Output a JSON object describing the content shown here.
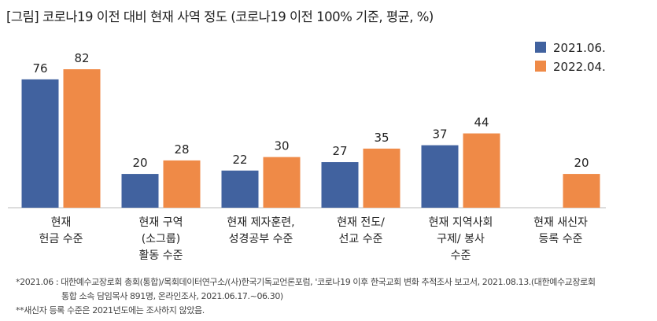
{
  "title": "[그림] 코로나19 이전 대비 현재 사역 정도 (코로나19 이전 100% 기준, 평균, %)",
  "chart_data": {
    "type": "bar",
    "categories": [
      [
        "현재",
        "헌금 수준"
      ],
      [
        "현재 구역",
        "(소그룹)",
        "활동 수준"
      ],
      [
        "현재 제자훈련,",
        "성경공부 수준"
      ],
      [
        "현재 전도/",
        "선교 수준"
      ],
      [
        "현재 지역사회",
        "구제/ 봉사",
        "수준"
      ],
      [
        "현재 새신자",
        "등록 수준"
      ]
    ],
    "series": [
      {
        "name": "2021.06.",
        "color": "#41629f",
        "values": [
          76,
          20,
          22,
          27,
          37,
          null
        ]
      },
      {
        "name": "2022.04.",
        "color": "#ef8a47",
        "values": [
          82,
          28,
          30,
          35,
          44,
          20
        ]
      }
    ],
    "ylim": [
      0,
      90
    ],
    "legend": "top-right"
  },
  "notes": [
    "*2021.06 : 대한예수교장로회 총회(통합)/목회데이터연구소/(사)한국기독교언론포럼, '코로나19 이후 한국교회 변화 추적조사 보고서, 2021.08.13.(대한예수교장로회",
    "통합 소속 담임목사 891명, 온라인조사, 2021.06.17.~06.30)",
    "**새신자 등록 수준은 2021년도에는 조사하지 않았음."
  ]
}
